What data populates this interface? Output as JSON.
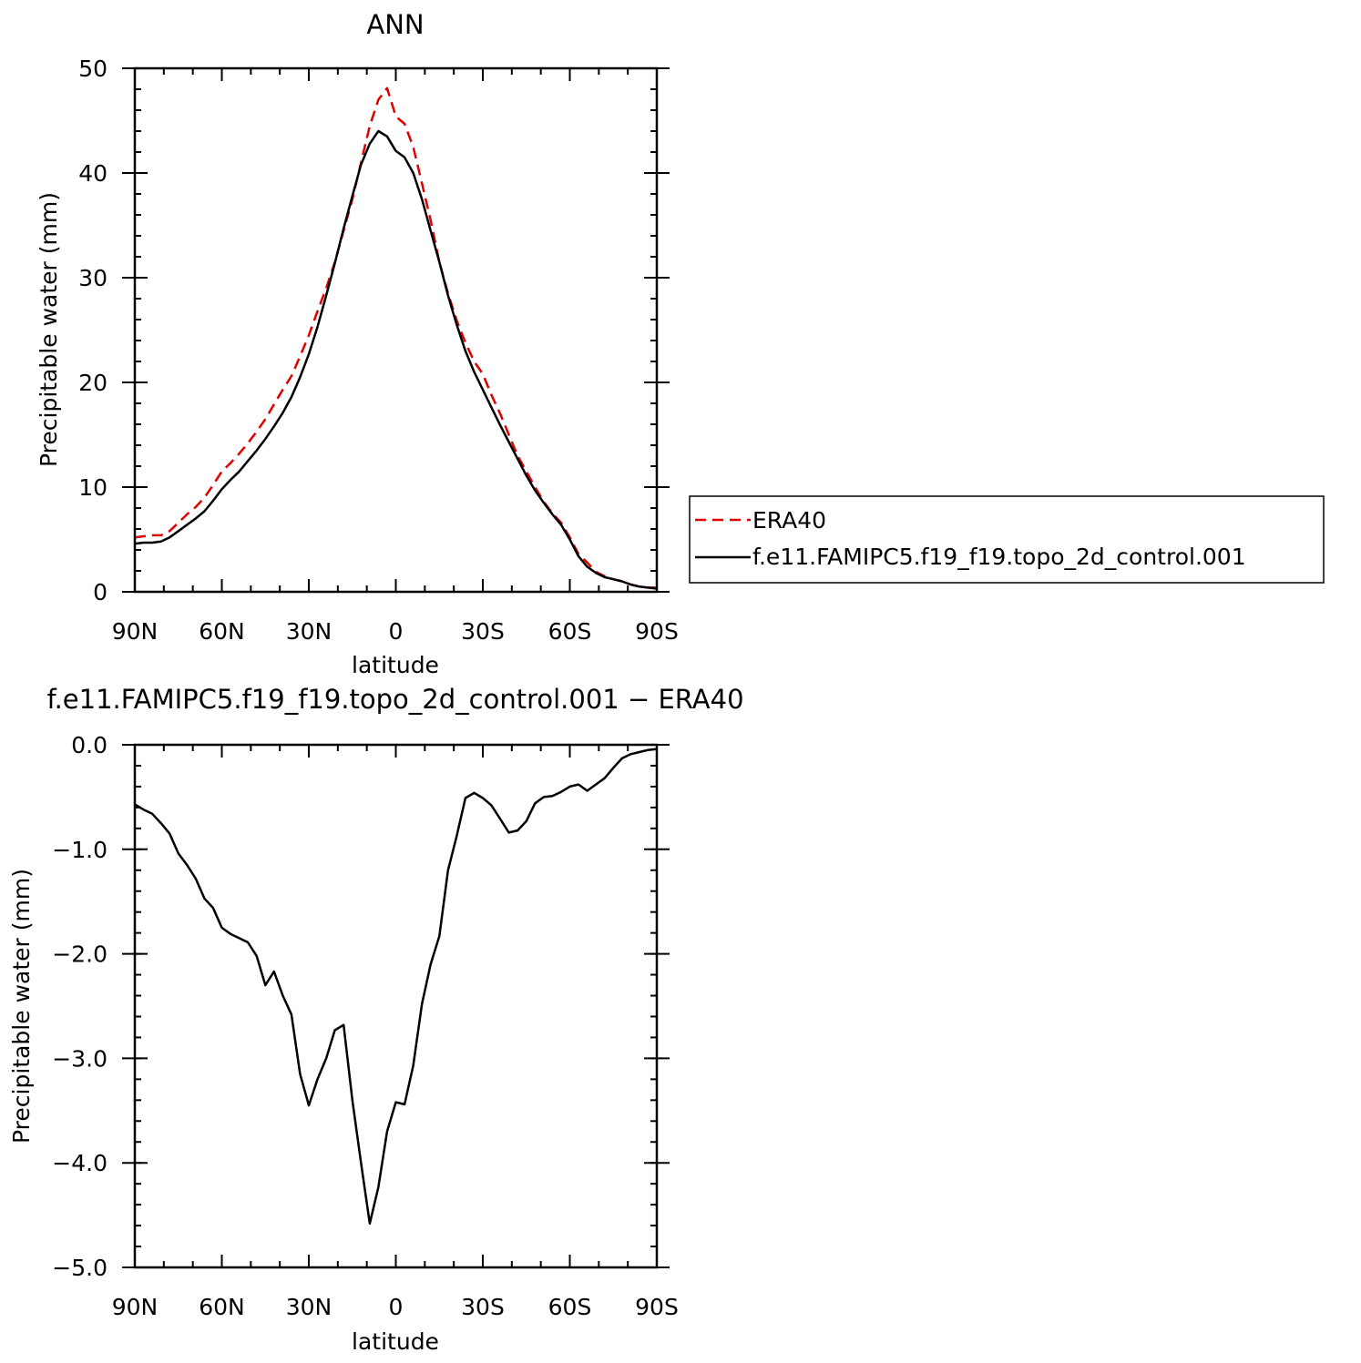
{
  "chart_data": [
    {
      "type": "line",
      "title": "ANN",
      "xlabel": "latitude",
      "ylabel": "Precipitable water (mm)",
      "xlim": [
        90,
        -90
      ],
      "ylim": [
        0,
        50
      ],
      "xticks": [
        90,
        60,
        30,
        0,
        -30,
        -60,
        -90
      ],
      "xtick_labels": [
        "90N",
        "60N",
        "30N",
        "0",
        "30S",
        "60S",
        "90S"
      ],
      "yticks": [
        0,
        10,
        20,
        30,
        40,
        50
      ],
      "ytick_labels": [
        "0",
        "10",
        "20",
        "30",
        "40",
        "50"
      ],
      "grid": false,
      "legend": {
        "placement": "right",
        "entries": [
          "ERA40",
          "f.e11.FAMIPC5.f19_f19.topo_2d_control.001"
        ]
      },
      "series": [
        {
          "name": "ERA40",
          "color": "#e00000",
          "style": "dashed",
          "x": [
            90,
            87,
            84,
            81,
            78,
            75,
            72,
            69,
            66,
            63,
            60,
            57,
            54,
            51,
            48,
            45,
            42,
            39,
            36,
            33,
            30,
            27,
            24,
            21,
            18,
            15,
            12,
            9,
            6,
            3,
            0,
            -3,
            -6,
            -9,
            -12,
            -15,
            -18,
            -21,
            -24,
            -27,
            -30,
            -33,
            -36,
            -39,
            -42,
            -45,
            -48,
            -51,
            -54,
            -57,
            -60,
            -63,
            -66,
            -69,
            -72,
            -75,
            -78,
            -81,
            -84,
            -87,
            -90
          ],
          "y": [
            5.2,
            5.3,
            5.4,
            5.4,
            5.8,
            6.6,
            7.4,
            8.1,
            9.0,
            10.2,
            11.5,
            12.3,
            13.2,
            14.2,
            15.3,
            16.5,
            17.9,
            19.3,
            20.6,
            22.5,
            24.5,
            26.8,
            29.0,
            31.5,
            34.5,
            37.5,
            41.0,
            44.5,
            47.0,
            48.1,
            45.4,
            44.7,
            42.5,
            39.0,
            35.5,
            31.5,
            28.5,
            25.9,
            23.8,
            22.0,
            20.8,
            18.8,
            17.0,
            15.0,
            13.0,
            11.5,
            10.0,
            8.6,
            7.5,
            6.6,
            5.2,
            3.6,
            2.8,
            1.9,
            1.5,
            1.2,
            1.0,
            0.7,
            0.5,
            0.4,
            0.4
          ]
        },
        {
          "name": "f.e11.FAMIPC5.f19_f19.topo_2d_control.001",
          "color": "#000000",
          "style": "solid",
          "x": [
            90,
            87,
            84,
            81,
            78,
            75,
            72,
            69,
            66,
            63,
            60,
            57,
            54,
            51,
            48,
            45,
            42,
            39,
            36,
            33,
            30,
            27,
            24,
            21,
            18,
            15,
            12,
            9,
            6,
            3,
            0,
            -3,
            -6,
            -9,
            -12,
            -15,
            -18,
            -21,
            -24,
            -27,
            -30,
            -33,
            -36,
            -39,
            -42,
            -45,
            -48,
            -51,
            -54,
            -57,
            -60,
            -63,
            -66,
            -69,
            -72,
            -75,
            -78,
            -81,
            -84,
            -87,
            -90
          ],
          "y": [
            4.6,
            4.7,
            4.7,
            4.8,
            5.2,
            5.8,
            6.4,
            7.0,
            7.7,
            8.7,
            9.8,
            10.7,
            11.5,
            12.5,
            13.5,
            14.6,
            15.8,
            17.1,
            18.6,
            20.5,
            22.7,
            25.3,
            28.3,
            31.4,
            34.7,
            37.8,
            40.8,
            42.8,
            44.0,
            43.5,
            42.1,
            41.5,
            40.0,
            37.5,
            34.5,
            31.5,
            28.3,
            25.5,
            23.0,
            21.0,
            19.3,
            17.6,
            15.9,
            14.3,
            12.7,
            11.1,
            9.7,
            8.5,
            7.4,
            6.4,
            5.0,
            3.4,
            2.4,
            1.8,
            1.4,
            1.2,
            1.0,
            0.7,
            0.5,
            0.4,
            0.3
          ]
        }
      ]
    },
    {
      "type": "line",
      "title": "f.e11.FAMIPC5.f19_f19.topo_2d_control.001 − ERA40",
      "xlabel": "latitude",
      "ylabel": "Precipitable water (mm)",
      "xlim": [
        90,
        -90
      ],
      "ylim": [
        -5,
        0
      ],
      "xticks": [
        90,
        60,
        30,
        0,
        -30,
        -60,
        -90
      ],
      "xtick_labels": [
        "90N",
        "60N",
        "30N",
        "0",
        "30S",
        "60S",
        "90S"
      ],
      "yticks": [
        0,
        -1,
        -2,
        -3,
        -4,
        -5
      ],
      "ytick_labels": [
        "0.0",
        "−1.0",
        "−2.0",
        "−3.0",
        "−4.0",
        "−5.0"
      ],
      "grid": false,
      "series": [
        {
          "color": "#000000",
          "style": "solid",
          "x": [
            90,
            87,
            84,
            81,
            78,
            75,
            72,
            69,
            66,
            63,
            60,
            57,
            54,
            51,
            48,
            45,
            42,
            39,
            36,
            33,
            30,
            27,
            24,
            21,
            18,
            15,
            12,
            9,
            6,
            3,
            0,
            -3,
            -6,
            -9,
            -12,
            -15,
            -18,
            -21,
            -24,
            -27,
            -30,
            -33,
            -36,
            -39,
            -42,
            -45,
            -48,
            -51,
            -54,
            -57,
            -60,
            -63,
            -66,
            -69,
            -72,
            -75,
            -78,
            -81,
            -84,
            -87,
            -90
          ],
          "y": [
            -0.57,
            -0.62,
            -0.66,
            -0.75,
            -0.85,
            -1.04,
            -1.15,
            -1.28,
            -1.47,
            -1.56,
            -1.75,
            -1.81,
            -1.85,
            -1.89,
            -2.02,
            -2.3,
            -2.17,
            -2.4,
            -2.58,
            -3.15,
            -3.45,
            -3.2,
            -3.0,
            -2.73,
            -2.68,
            -3.4,
            -4.0,
            -4.58,
            -4.23,
            -3.7,
            -3.42,
            -3.44,
            -3.07,
            -2.48,
            -2.1,
            -1.83,
            -1.2,
            -0.87,
            -0.51,
            -0.46,
            -0.51,
            -0.58,
            -0.71,
            -0.84,
            -0.82,
            -0.73,
            -0.56,
            -0.5,
            -0.49,
            -0.45,
            -0.4,
            -0.38,
            -0.44,
            -0.38,
            -0.32,
            -0.22,
            -0.13,
            -0.09,
            -0.07,
            -0.05,
            -0.04
          ]
        }
      ]
    }
  ]
}
